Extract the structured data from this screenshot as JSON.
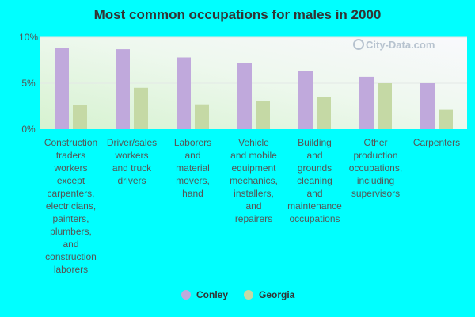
{
  "chart_data": {
    "type": "bar",
    "title": "Most common occupations for males in 2000",
    "xlabel": "",
    "ylabel": "",
    "ylim": [
      0,
      10
    ],
    "yticks": [
      {
        "value": 0,
        "label": "0%"
      },
      {
        "value": 5,
        "label": "5%"
      },
      {
        "value": 10,
        "label": "10%"
      }
    ],
    "categories": [
      [
        "Construction",
        "traders",
        "workers",
        "except",
        "carpenters,",
        "electricians,",
        "painters,",
        "plumbers,",
        "and",
        "construction",
        "laborers"
      ],
      [
        "Driver/sales",
        "workers",
        "and truck",
        "drivers"
      ],
      [
        "Laborers",
        "and",
        "material",
        "movers,",
        "hand"
      ],
      [
        "Vehicle",
        "and mobile",
        "equipment",
        "mechanics,",
        "installers,",
        "and",
        "repairers"
      ],
      [
        "Building",
        "and",
        "grounds",
        "cleaning",
        "and",
        "maintenance",
        "occupations"
      ],
      [
        "Other",
        "production",
        "occupations,",
        "including",
        "supervisors"
      ],
      [
        "Carpenters"
      ]
    ],
    "series": [
      {
        "name": "Conley",
        "color": "#c0a9dc",
        "values": [
          8.8,
          8.7,
          7.8,
          7.2,
          6.3,
          5.7,
          5.0
        ]
      },
      {
        "name": "Georgia",
        "color": "#c5d9a5",
        "values": [
          2.6,
          4.5,
          2.7,
          3.1,
          3.5,
          5.0,
          2.1
        ]
      }
    ],
    "legend": "bottom-center",
    "grid": true
  },
  "watermark": "City-Data.com"
}
